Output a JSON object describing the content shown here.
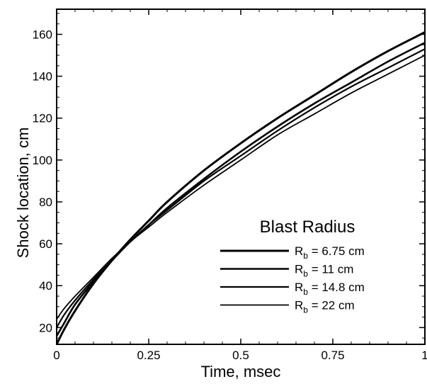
{
  "chart_data": {
    "type": "line",
    "title": "",
    "xlabel": "Time, msec",
    "ylabel": "Shock location, cm",
    "xlim": [
      0,
      1
    ],
    "ylim": [
      12,
      172
    ],
    "x_ticks": [
      0,
      0.25,
      0.5,
      0.75,
      1
    ],
    "x_tick_labels": [
      "0",
      "0.25",
      "0.5",
      "0.75",
      "1"
    ],
    "y_ticks": [
      20,
      40,
      60,
      80,
      100,
      120,
      140,
      160
    ],
    "y_tick_labels": [
      "20",
      "40",
      "60",
      "80",
      "100",
      "120",
      "140",
      "160"
    ],
    "grid": false,
    "legend": {
      "title": "Blast Radius",
      "placement": "bottom-right"
    },
    "series": [
      {
        "name": "R_b = 6.75 cm",
        "label_main": "R",
        "label_sub": "b",
        "label_rest": " = 6.75 cm",
        "stroke_width": 3.0,
        "x": [
          0,
          0.02,
          0.05,
          0.1,
          0.15,
          0.2,
          0.25,
          0.3,
          0.4,
          0.5,
          0.6,
          0.7,
          0.8,
          0.9,
          1.0
        ],
        "values": [
          12,
          19,
          28,
          41,
          52,
          62,
          71,
          80,
          95,
          108,
          120,
          131,
          142,
          152,
          161
        ]
      },
      {
        "name": "R_b = 11 cm",
        "label_main": "R",
        "label_sub": "b",
        "label_rest": " = 11 cm",
        "stroke_width": 2.6,
        "x": [
          0,
          0.02,
          0.05,
          0.1,
          0.15,
          0.2,
          0.25,
          0.3,
          0.4,
          0.5,
          0.6,
          0.7,
          0.8,
          0.9,
          1.0
        ],
        "values": [
          16,
          22,
          31,
          42,
          52,
          61,
          69,
          77,
          91,
          104,
          116,
          127,
          137,
          147,
          156
        ]
      },
      {
        "name": "R_b = 14.8 cm",
        "label_main": "R",
        "label_sub": "b",
        "label_rest": " = 14.8 cm",
        "stroke_width": 2.2,
        "x": [
          0,
          0.02,
          0.05,
          0.1,
          0.15,
          0.2,
          0.25,
          0.3,
          0.4,
          0.5,
          0.6,
          0.7,
          0.8,
          0.9,
          1.0
        ],
        "values": [
          20,
          26,
          33,
          43,
          52,
          61,
          69,
          76,
          90,
          102,
          114,
          125,
          135,
          144,
          153
        ]
      },
      {
        "name": "R_b = 22 cm",
        "label_main": "R",
        "label_sub": "b",
        "label_rest": " = 22 cm",
        "stroke_width": 1.8,
        "x": [
          0,
          0.02,
          0.05,
          0.1,
          0.15,
          0.2,
          0.25,
          0.3,
          0.4,
          0.5,
          0.6,
          0.7,
          0.8,
          0.9,
          1.0
        ],
        "values": [
          24,
          29,
          35,
          44,
          53,
          61,
          68,
          75,
          88,
          100,
          112,
          122,
          132,
          141,
          150
        ]
      }
    ]
  }
}
